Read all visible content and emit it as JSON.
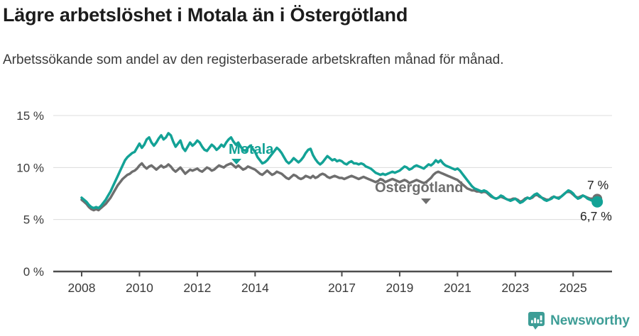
{
  "header": {
    "title": "Lägre arbetslöshet i Motala än i Östergötland",
    "subtitle": "Arbetssökande som andel av den registerbaserade arbetskraften månad för månad."
  },
  "chart_data": {
    "type": "line",
    "title": "Lägre arbetslöshet i Motala än i Östergötland",
    "x_unit": "month",
    "x_start": "2008-01",
    "x_end": "2025-11",
    "points_per_year": 12,
    "x_tick_years": [
      2008,
      2010,
      2012,
      2014,
      2017,
      2019,
      2021,
      2023,
      2025
    ],
    "y_tick_values": [
      0,
      5,
      10,
      15
    ],
    "y_tick_labels": [
      "0 %",
      "5 %",
      "10 %",
      "15 %"
    ],
    "ylim": [
      0,
      16.5
    ],
    "grid": "horizontal",
    "legend_position": "inline-labels",
    "series": [
      {
        "name": "Motala",
        "color": "#13a296",
        "end_label": "6,7 %",
        "end_value": 6.7,
        "values": [
          7.1,
          6.9,
          6.7,
          6.4,
          6.2,
          6.1,
          6.2,
          6.1,
          6.3,
          6.6,
          6.9,
          7.3,
          7.7,
          8.2,
          8.7,
          9.2,
          9.7,
          10.2,
          10.7,
          11.0,
          11.2,
          11.4,
          11.5,
          11.9,
          12.3,
          11.9,
          12.2,
          12.7,
          12.9,
          12.4,
          12.1,
          12.4,
          12.8,
          13.1,
          12.7,
          12.9,
          13.3,
          13.1,
          12.5,
          12.0,
          12.3,
          12.6,
          11.9,
          11.6,
          12.0,
          12.4,
          12.1,
          12.3,
          12.6,
          12.4,
          12.0,
          11.7,
          11.6,
          11.9,
          12.2,
          12.0,
          11.7,
          11.9,
          12.2,
          12.0,
          12.4,
          12.7,
          12.9,
          12.5,
          12.2,
          12.4,
          12.0,
          11.7,
          11.6,
          11.9,
          12.1,
          11.8,
          11.5,
          11.0,
          10.7,
          10.4,
          10.5,
          10.7,
          11.0,
          11.3,
          11.6,
          11.9,
          11.7,
          11.4,
          11.0,
          10.6,
          10.4,
          10.6,
          10.9,
          10.7,
          10.5,
          10.7,
          11.0,
          11.4,
          11.7,
          11.8,
          11.2,
          10.8,
          10.5,
          10.3,
          10.5,
          10.8,
          11.1,
          10.9,
          10.7,
          10.8,
          10.6,
          10.7,
          10.6,
          10.4,
          10.3,
          10.5,
          10.6,
          10.4,
          10.4,
          10.3,
          10.4,
          10.3,
          10.1,
          10.0,
          9.9,
          9.7,
          9.5,
          9.4,
          9.3,
          9.4,
          9.3,
          9.4,
          9.5,
          9.6,
          9.5,
          9.6,
          9.7,
          9.9,
          10.1,
          10.0,
          9.8,
          9.9,
          10.1,
          10.2,
          10.1,
          10.0,
          9.9,
          10.1,
          10.3,
          10.2,
          10.4,
          10.7,
          10.5,
          10.7,
          10.4,
          10.2,
          10.1,
          10.0,
          9.9,
          9.8,
          9.9,
          9.7,
          9.4,
          9.1,
          8.8,
          8.5,
          8.2,
          8.0,
          7.9,
          7.8,
          7.7,
          7.8,
          7.7,
          7.5,
          7.3,
          7.1,
          7.0,
          7.1,
          7.3,
          7.2,
          7.0,
          6.9,
          6.8,
          6.9,
          7.0,
          6.8,
          6.6,
          6.7,
          6.9,
          7.1,
          7.0,
          7.2,
          7.4,
          7.5,
          7.3,
          7.1,
          6.9,
          6.8,
          6.9,
          7.0,
          7.2,
          7.1,
          7.0,
          7.2,
          7.4,
          7.6,
          7.8,
          7.7,
          7.5,
          7.2,
          7.0,
          7.1,
          7.3,
          7.2,
          7.0,
          6.9,
          6.8,
          6.6,
          6.7
        ]
      },
      {
        "name": "Östergötland",
        "color": "#6e6e6e",
        "end_label": "7 %",
        "end_value": 7.0,
        "values": [
          6.9,
          6.7,
          6.5,
          6.2,
          6.0,
          5.9,
          6.0,
          5.9,
          6.1,
          6.3,
          6.5,
          6.8,
          7.1,
          7.5,
          7.9,
          8.3,
          8.6,
          8.9,
          9.1,
          9.3,
          9.4,
          9.6,
          9.7,
          9.9,
          10.2,
          10.4,
          10.1,
          9.9,
          10.1,
          10.2,
          10.0,
          9.8,
          10.0,
          10.2,
          10.0,
          10.1,
          10.3,
          10.1,
          9.8,
          9.6,
          9.8,
          10.0,
          9.7,
          9.4,
          9.6,
          9.8,
          9.7,
          9.8,
          9.9,
          9.7,
          9.6,
          9.8,
          10.0,
          9.9,
          9.7,
          9.8,
          10.0,
          10.2,
          10.1,
          10.0,
          10.2,
          10.3,
          10.4,
          10.2,
          10.0,
          10.2,
          10.0,
          9.8,
          9.9,
          10.1,
          10.0,
          9.9,
          9.8,
          9.6,
          9.4,
          9.3,
          9.5,
          9.7,
          9.5,
          9.3,
          9.4,
          9.6,
          9.5,
          9.4,
          9.2,
          9.0,
          8.9,
          9.1,
          9.3,
          9.2,
          9.0,
          8.9,
          9.0,
          9.2,
          9.1,
          9.0,
          9.2,
          9.0,
          9.1,
          9.3,
          9.4,
          9.3,
          9.1,
          9.0,
          9.1,
          9.2,
          9.1,
          9.0,
          9.0,
          8.9,
          9.0,
          9.1,
          9.2,
          9.1,
          9.0,
          8.9,
          9.0,
          9.1,
          9.0,
          8.9,
          8.8,
          8.7,
          8.6,
          8.7,
          8.9,
          8.8,
          8.6,
          8.7,
          8.8,
          8.9,
          8.8,
          8.7,
          8.6,
          8.7,
          8.8,
          8.7,
          8.5,
          8.6,
          8.7,
          8.8,
          8.7,
          8.6,
          8.5,
          8.6,
          8.8,
          9.0,
          9.3,
          9.5,
          9.6,
          9.5,
          9.4,
          9.3,
          9.2,
          9.1,
          9.0,
          8.9,
          8.8,
          8.6,
          8.4,
          8.2,
          8.0,
          7.9,
          7.8,
          7.8,
          7.7,
          7.7,
          7.6,
          7.7,
          7.6,
          7.4,
          7.2,
          7.1,
          7.0,
          7.1,
          7.2,
          7.1,
          7.0,
          6.9,
          6.9,
          7.0,
          7.0,
          6.9,
          6.7,
          6.8,
          7.0,
          7.1,
          7.0,
          7.1,
          7.3,
          7.4,
          7.2,
          7.1,
          7.0,
          6.9,
          6.9,
          7.1,
          7.2,
          7.1,
          7.1,
          7.2,
          7.4,
          7.6,
          7.7,
          7.6,
          7.4,
          7.2,
          7.1,
          7.2,
          7.3,
          7.2,
          7.1,
          7.0,
          7.0,
          7.0,
          7.0
        ]
      }
    ],
    "colors": {
      "grid": "#dcdcdc",
      "axis": "#4d4d4d",
      "tick_text": "#3a3a3a",
      "end_label_text": "#222222"
    }
  },
  "footer": {
    "brand": "Newsworthy",
    "brand_color": "#3d9d96"
  }
}
